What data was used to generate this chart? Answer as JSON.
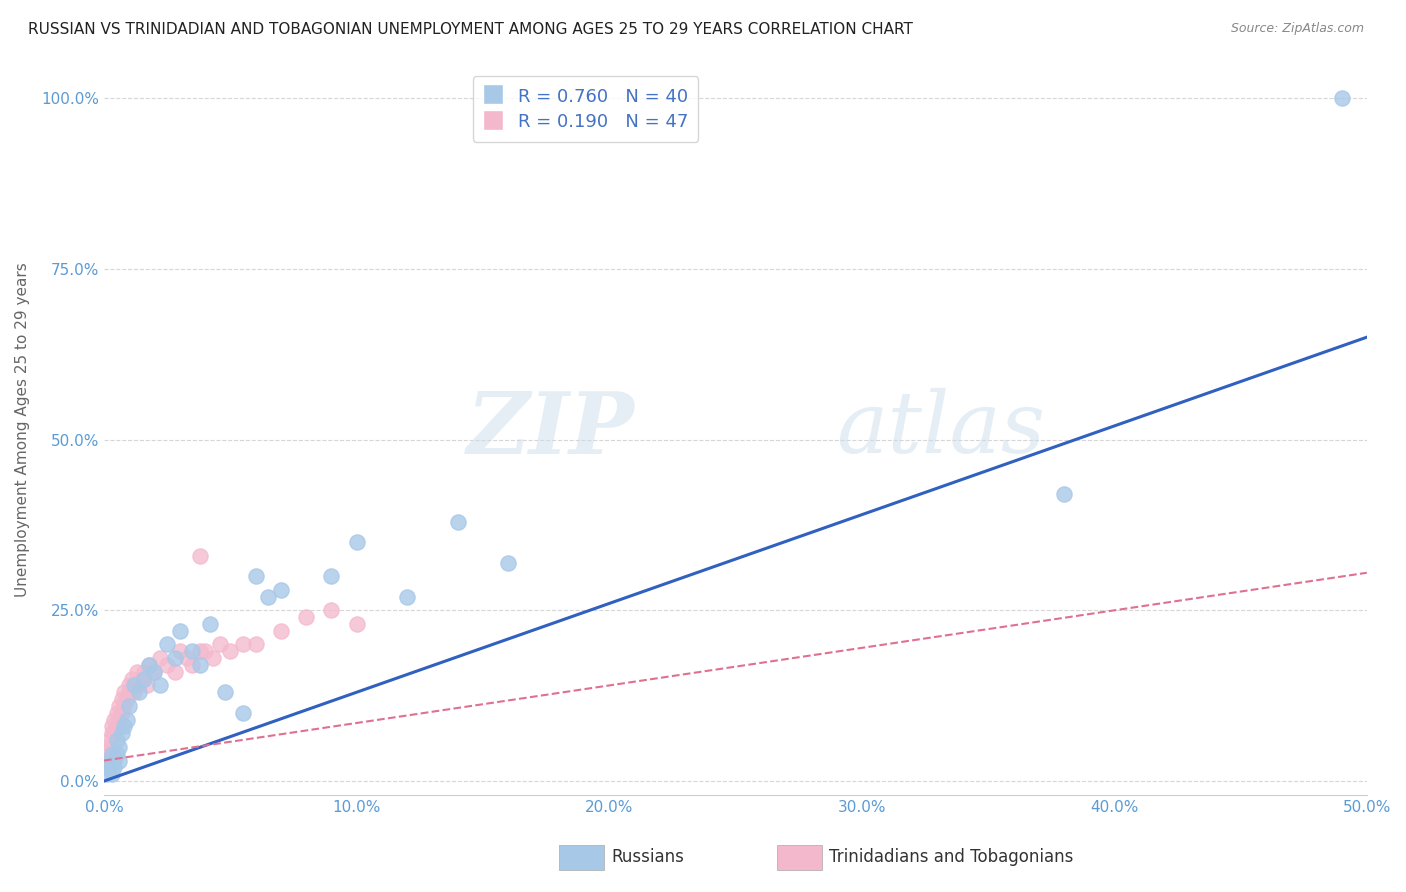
{
  "title": "RUSSIAN VS TRINIDADIAN AND TOBAGONIAN UNEMPLOYMENT AMONG AGES 25 TO 29 YEARS CORRELATION CHART",
  "source": "Source: ZipAtlas.com",
  "ylabel": "Unemployment Among Ages 25 to 29 years",
  "xlim": [
    0.0,
    0.5
  ],
  "ylim": [
    -0.02,
    1.05
  ],
  "xticks": [
    0.0,
    0.1,
    0.2,
    0.3,
    0.4,
    0.5
  ],
  "xticklabels": [
    "0.0%",
    "10.0%",
    "20.0%",
    "30.0%",
    "40.0%",
    "50.0%"
  ],
  "yticks": [
    0.0,
    0.25,
    0.5,
    0.75,
    1.0
  ],
  "yticklabels": [
    "0.0%",
    "25.0%",
    "50.0%",
    "75.0%",
    "100.0%"
  ],
  "grid_color": "#cccccc",
  "background_color": "#ffffff",
  "russians_color": "#a8c8e8",
  "trinidadian_color": "#f4b8cc",
  "regression_russian_color": "#3060c0",
  "regression_trini_color": "#e07090",
  "legend_R_russian": "0.760",
  "legend_N_russian": "40",
  "legend_R_trini": "0.190",
  "legend_N_trini": "47",
  "watermark_zip": "ZIP",
  "watermark_atlas": "atlas",
  "russians_x": [
    0.001,
    0.001,
    0.002,
    0.002,
    0.003,
    0.003,
    0.004,
    0.004,
    0.005,
    0.005,
    0.006,
    0.006,
    0.007,
    0.008,
    0.009,
    0.01,
    0.012,
    0.014,
    0.016,
    0.018,
    0.02,
    0.022,
    0.025,
    0.028,
    0.03,
    0.035,
    0.038,
    0.042,
    0.048,
    0.055,
    0.06,
    0.065,
    0.07,
    0.09,
    0.1,
    0.12,
    0.14,
    0.16,
    0.38,
    0.49
  ],
  "russians_y": [
    0.01,
    0.02,
    0.02,
    0.03,
    0.01,
    0.04,
    0.03,
    0.02,
    0.04,
    0.06,
    0.05,
    0.03,
    0.07,
    0.08,
    0.09,
    0.11,
    0.14,
    0.13,
    0.15,
    0.17,
    0.16,
    0.14,
    0.2,
    0.18,
    0.22,
    0.19,
    0.17,
    0.23,
    0.13,
    0.1,
    0.3,
    0.27,
    0.28,
    0.3,
    0.35,
    0.27,
    0.38,
    0.32,
    0.42,
    1.0
  ],
  "trini_x": [
    0.001,
    0.001,
    0.002,
    0.002,
    0.003,
    0.003,
    0.003,
    0.004,
    0.004,
    0.005,
    0.005,
    0.006,
    0.006,
    0.007,
    0.007,
    0.008,
    0.008,
    0.009,
    0.01,
    0.01,
    0.011,
    0.012,
    0.013,
    0.014,
    0.015,
    0.016,
    0.017,
    0.018,
    0.02,
    0.022,
    0.025,
    0.028,
    0.03,
    0.033,
    0.035,
    0.038,
    0.04,
    0.043,
    0.046,
    0.05,
    0.055,
    0.06,
    0.07,
    0.08,
    0.09,
    0.1,
    0.038
  ],
  "trini_y": [
    0.03,
    0.05,
    0.04,
    0.06,
    0.05,
    0.07,
    0.08,
    0.07,
    0.09,
    0.08,
    0.1,
    0.09,
    0.11,
    0.1,
    0.12,
    0.11,
    0.13,
    0.12,
    0.13,
    0.14,
    0.15,
    0.13,
    0.16,
    0.14,
    0.15,
    0.16,
    0.14,
    0.17,
    0.16,
    0.18,
    0.17,
    0.16,
    0.19,
    0.18,
    0.17,
    0.19,
    0.19,
    0.18,
    0.2,
    0.19,
    0.2,
    0.2,
    0.22,
    0.24,
    0.25,
    0.23,
    0.33
  ]
}
